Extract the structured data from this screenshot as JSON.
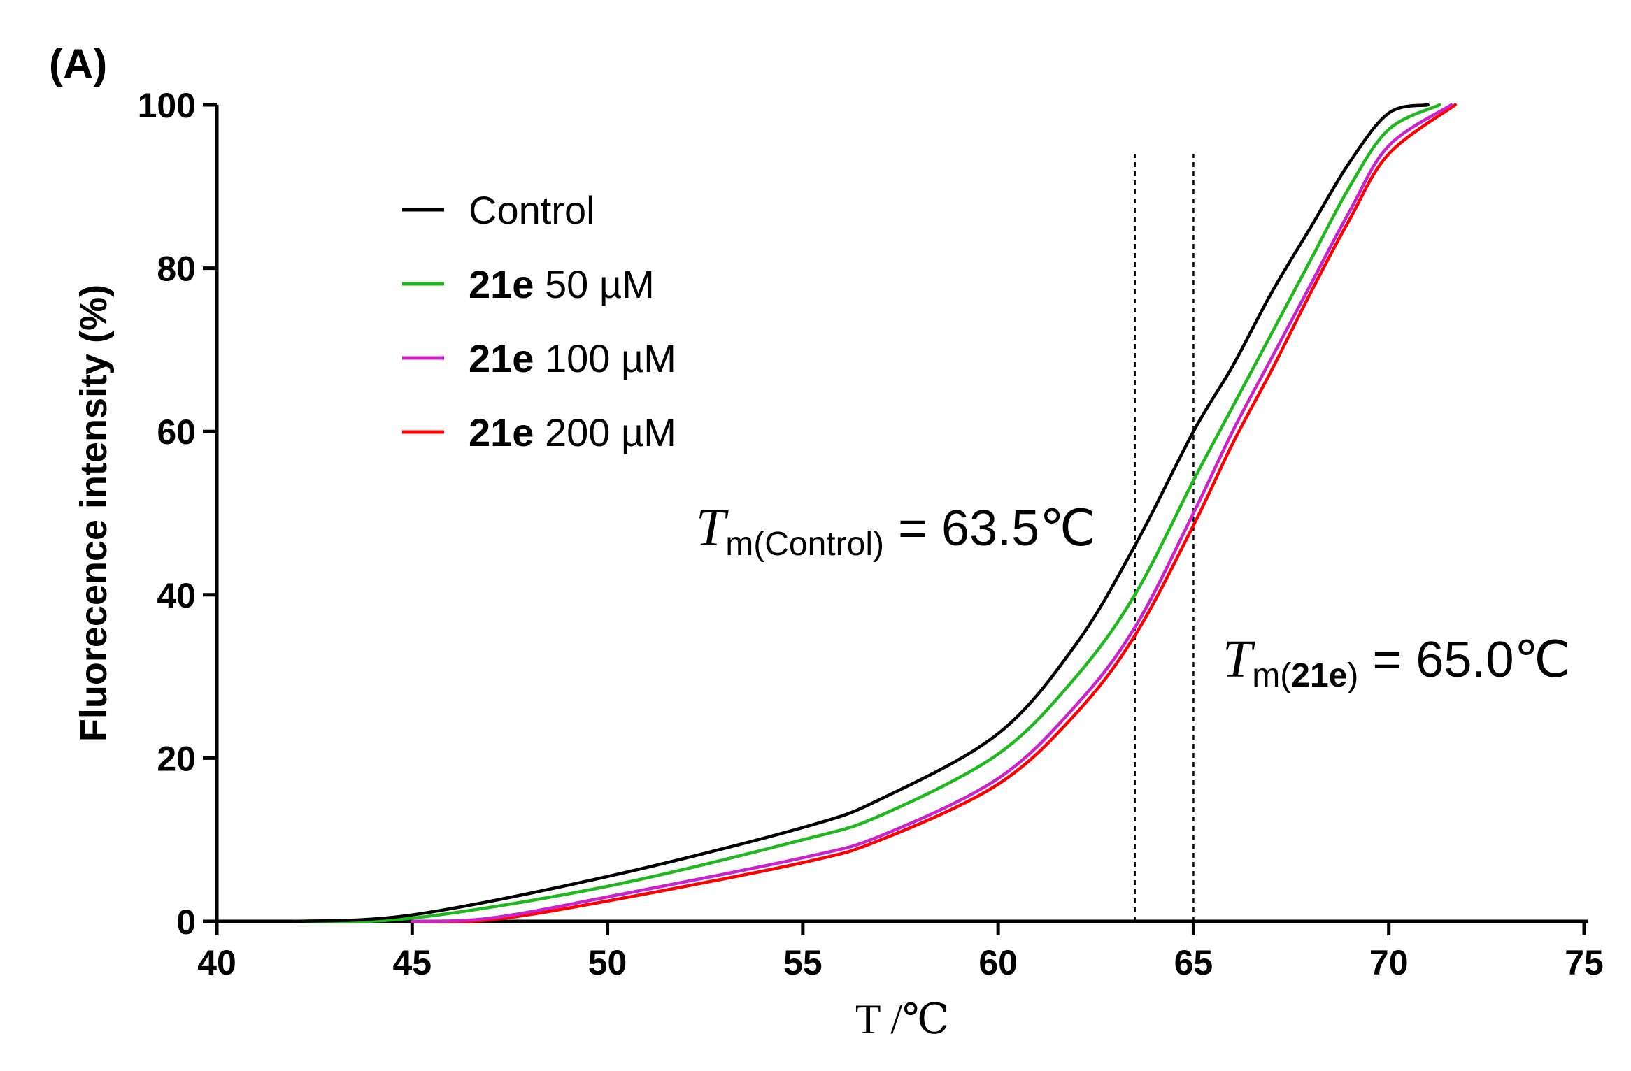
{
  "panel_label": "(A)",
  "chart_data": {
    "type": "line",
    "title": "",
    "xlabel": "T /℃",
    "ylabel": "Fluorecence intensity (%)",
    "xlim": [
      40,
      75
    ],
    "ylim": [
      0,
      100
    ],
    "xticks": [
      40,
      45,
      50,
      55,
      60,
      65,
      70,
      75
    ],
    "yticks": [
      0,
      20,
      40,
      60,
      80,
      100
    ],
    "xtick_labels": [
      "40",
      "45",
      "50",
      "55",
      "60",
      "65",
      "70",
      "75"
    ],
    "ytick_labels": [
      "0",
      "20",
      "40",
      "60",
      "80",
      "100"
    ],
    "legend_position": "top-left",
    "series": [
      {
        "name": "Control",
        "name_bold": "",
        "name_rest": "Control",
        "color": "#000000",
        "x": [
          42,
          45,
          50,
          55,
          57,
          60,
          62,
          63.5,
          65,
          66,
          67,
          68,
          69,
          70,
          71
        ],
        "y": [
          0,
          0.8,
          5.5,
          11.5,
          15,
          23,
          34,
          46,
          60,
          68,
          77,
          85,
          93,
          99,
          100
        ]
      },
      {
        "name": "21e 50 µM",
        "name_bold": "21e",
        "name_rest": " 50 µM",
        "color": "#1fb81f",
        "x": [
          42,
          45,
          50,
          55,
          57,
          60,
          62,
          63.5,
          65,
          66,
          67,
          68,
          69,
          70,
          71.3
        ],
        "y": [
          0,
          0.4,
          4.3,
          10,
          13,
          20.5,
          30,
          40,
          54,
          63,
          72,
          81,
          90,
          97,
          100
        ]
      },
      {
        "name": "21e 100 µM",
        "name_bold": "21e",
        "name_rest": " 100 µM",
        "color": "#cc22cc",
        "x": [
          45,
          47,
          50,
          55,
          57,
          60,
          62,
          63.5,
          65,
          66,
          67,
          68,
          69,
          70,
          71.6
        ],
        "y": [
          0,
          0.4,
          3,
          7.8,
          10.5,
          17.5,
          26.5,
          36,
          50,
          60,
          69,
          78,
          87,
          95,
          100
        ]
      },
      {
        "name": "21e 200 µM",
        "name_bold": "21e",
        "name_rest": " 200 µM",
        "color": "#ff0000",
        "x": [
          45,
          47,
          50,
          55,
          57,
          60,
          62,
          63.5,
          65,
          66,
          67,
          68,
          69,
          70,
          71.7
        ],
        "y": [
          0,
          0.2,
          2.5,
          7.2,
          10,
          16.8,
          25.5,
          35,
          48.5,
          58.5,
          67.5,
          77,
          86,
          94,
          100
        ]
      }
    ],
    "reference_lines": [
      {
        "x": 63.5,
        "style": "dashed"
      },
      {
        "x": 65.0,
        "style": "dashed"
      }
    ],
    "annotations": [
      {
        "id": "control",
        "italic": "T",
        "subscript": "m(Control)",
        "subscript_bold": "",
        "subscript_close": "",
        "value": " = 63.5℃"
      },
      {
        "id": "21e",
        "italic": "T",
        "subscript": "m(",
        "subscript_bold": "21e",
        "subscript_close": ")",
        "value": " = 65.0℃"
      }
    ]
  }
}
